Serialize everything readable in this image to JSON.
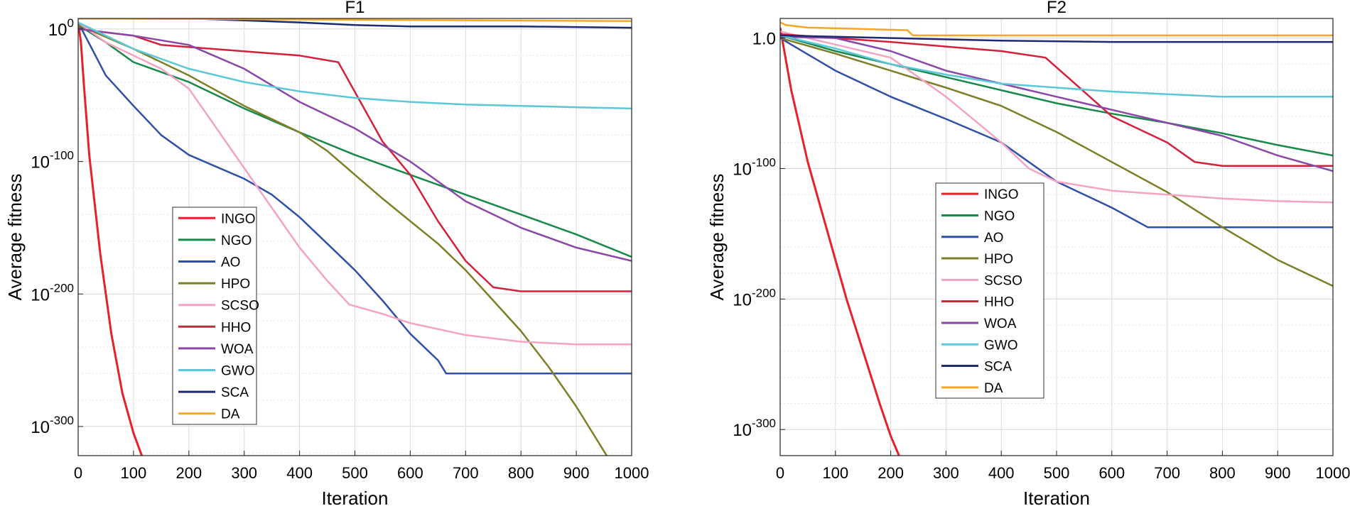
{
  "chart_data": [
    {
      "type": "line",
      "title": "F1",
      "xlabel": "Iteration",
      "ylabel": "Average fitness",
      "xlim": [
        0,
        1000
      ],
      "ylim_log10": [
        -322,
        8
      ],
      "xticks": [
        0,
        100,
        200,
        300,
        400,
        500,
        600,
        700,
        800,
        900,
        1000
      ],
      "yticks": [
        {
          "value": 0,
          "base": "10",
          "exp": "0"
        },
        {
          "value": -100,
          "base": "10",
          "exp": "-100"
        },
        {
          "value": -200,
          "base": "10",
          "exp": "-200"
        },
        {
          "value": -300,
          "base": "10",
          "exp": "-300"
        }
      ],
      "grid": true,
      "legend_position": "bottom-left",
      "series": [
        {
          "name": "INGO",
          "color": "#e8202a",
          "x": [
            0,
            5,
            10,
            20,
            40,
            60,
            80,
            100,
            115
          ],
          "log10_y": [
            5,
            -10,
            -40,
            -95,
            -170,
            -230,
            -275,
            -305,
            -322
          ]
        },
        {
          "name": "NGO",
          "color": "#17894a",
          "x": [
            0,
            50,
            100,
            200,
            300,
            400,
            500,
            600,
            700,
            800,
            900,
            1000
          ],
          "log10_y": [
            3,
            -10,
            -25,
            -40,
            -60,
            -78,
            -95,
            -110,
            -125,
            -140,
            -155,
            -172
          ]
        },
        {
          "name": "AO",
          "color": "#2f4fa8",
          "x": [
            0,
            25,
            50,
            100,
            150,
            200,
            300,
            350,
            400,
            450,
            500,
            550,
            600,
            650,
            665,
            700,
            800,
            900,
            1000
          ],
          "log10_y": [
            5,
            -15,
            -35,
            -58,
            -80,
            -95,
            -113,
            -125,
            -142,
            -162,
            -182,
            -205,
            -230,
            -250,
            -260,
            -260,
            -260,
            -260,
            -260
          ]
        },
        {
          "name": "HPO",
          "color": "#7d7f26",
          "x": [
            0,
            100,
            200,
            300,
            400,
            450,
            500,
            550,
            600,
            650,
            700,
            750,
            800,
            850,
            900,
            955
          ],
          "log10_y": [
            3,
            -15,
            -35,
            -58,
            -78,
            -92,
            -110,
            -128,
            -145,
            -162,
            -182,
            -205,
            -228,
            -255,
            -285,
            -322
          ]
        },
        {
          "name": "SCSO",
          "color": "#f4a3c4",
          "x": [
            0,
            50,
            100,
            150,
            200,
            250,
            300,
            350,
            400,
            450,
            490,
            550,
            600,
            700,
            800,
            900,
            1000
          ],
          "log10_y": [
            5,
            -10,
            -20,
            -30,
            -45,
            -75,
            -105,
            -135,
            -165,
            -190,
            -208,
            -215,
            -222,
            -231,
            -236,
            -238,
            -238
          ]
        },
        {
          "name": "HHO",
          "color": "#d4203a",
          "x": [
            0,
            100,
            150,
            400,
            470,
            510,
            550,
            600,
            650,
            700,
            750,
            800,
            900,
            1000
          ],
          "log10_y": [
            0,
            -5,
            -12,
            -20,
            -25,
            -55,
            -85,
            -110,
            -145,
            -175,
            -195,
            -198,
            -198,
            -198
          ]
        },
        {
          "name": "WOA",
          "color": "#8a47a8",
          "x": [
            0,
            100,
            200,
            300,
            400,
            500,
            600,
            700,
            800,
            900,
            1000
          ],
          "log10_y": [
            0,
            -5,
            -12,
            -30,
            -55,
            -75,
            -100,
            -130,
            -150,
            -165,
            -175
          ]
        },
        {
          "name": "GWO",
          "color": "#5bc8d8",
          "x": [
            0,
            100,
            200,
            300,
            400,
            500,
            600,
            700,
            800,
            900,
            1000
          ],
          "log10_y": [
            5,
            -15,
            -30,
            -40,
            -47,
            -52,
            -55,
            -57,
            -58,
            -59,
            -60
          ]
        },
        {
          "name": "SCA",
          "color": "#1f2a6e",
          "x": [
            0,
            200,
            400,
            500,
            600,
            800,
            1000
          ],
          "log10_y": [
            8,
            8,
            5,
            3,
            2,
            2,
            1
          ]
        },
        {
          "name": "DA",
          "color": "#f6a623",
          "x": [
            0,
            1000
          ],
          "log10_y": [
            8,
            6
          ]
        }
      ]
    },
    {
      "type": "line",
      "title": "F2",
      "xlabel": "Iteration",
      "ylabel": "Average fitness",
      "xlim": [
        0,
        1000
      ],
      "ylim_log10": [
        -320,
        15
      ],
      "xticks": [
        0,
        100,
        200,
        300,
        400,
        500,
        600,
        700,
        800,
        900,
        1000
      ],
      "yticks": [
        {
          "value": 0,
          "base": "1.0",
          "exp": ""
        },
        {
          "value": -100,
          "base": "10",
          "exp": "-100"
        },
        {
          "value": -200,
          "base": "10",
          "exp": "-200"
        },
        {
          "value": -300,
          "base": "10",
          "exp": "-300"
        }
      ],
      "grid": true,
      "legend_position": "bottom-left",
      "series": [
        {
          "name": "INGO",
          "color": "#e8202a",
          "x": [
            0,
            20,
            50,
            80,
            100,
            120,
            150,
            180,
            200,
            215
          ],
          "log10_y": [
            8,
            -40,
            -95,
            -140,
            -170,
            -200,
            -240,
            -280,
            -305,
            -320
          ]
        },
        {
          "name": "NGO",
          "color": "#17894a",
          "x": [
            0,
            100,
            200,
            300,
            400,
            500,
            600,
            700,
            800,
            900,
            1000
          ],
          "log10_y": [
            2,
            -10,
            -20,
            -30,
            -40,
            -50,
            -58,
            -65,
            -73,
            -82,
            -90
          ]
        },
        {
          "name": "AO",
          "color": "#2f4fa8",
          "x": [
            0,
            100,
            200,
            300,
            400,
            500,
            600,
            665,
            700,
            800,
            900,
            1000
          ],
          "log10_y": [
            0,
            -25,
            -45,
            -62,
            -80,
            -110,
            -130,
            -145,
            -145,
            -145,
            -145,
            -145
          ]
        },
        {
          "name": "HPO",
          "color": "#7d7f26",
          "x": [
            0,
            100,
            200,
            300,
            400,
            500,
            600,
            700,
            800,
            900,
            1000
          ],
          "log10_y": [
            0,
            -12,
            -25,
            -38,
            -52,
            -72,
            -95,
            -118,
            -145,
            -170,
            -190
          ]
        },
        {
          "name": "SCSO",
          "color": "#f4a3c4",
          "x": [
            0,
            100,
            200,
            300,
            400,
            450,
            500,
            600,
            700,
            800,
            900,
            1000
          ],
          "log10_y": [
            5,
            -5,
            -15,
            -45,
            -80,
            -100,
            -110,
            -117,
            -120,
            -123,
            -125,
            -126
          ]
        },
        {
          "name": "HHO",
          "color": "#d4203a",
          "x": [
            0,
            100,
            200,
            400,
            480,
            520,
            560,
            600,
            700,
            750,
            800,
            900,
            1000
          ],
          "log10_y": [
            3,
            0,
            -3,
            -10,
            -15,
            -30,
            -45,
            -60,
            -80,
            -95,
            -98,
            -98,
            -98
          ]
        },
        {
          "name": "WOA",
          "color": "#8a47a8",
          "x": [
            0,
            100,
            200,
            300,
            400,
            500,
            600,
            700,
            800,
            900,
            1000
          ],
          "log10_y": [
            1,
            0,
            -10,
            -25,
            -35,
            -45,
            -55,
            -65,
            -75,
            -90,
            -102
          ]
        },
        {
          "name": "GWO",
          "color": "#5bc8d8",
          "x": [
            0,
            100,
            200,
            300,
            400,
            500,
            600,
            700,
            800,
            900,
            1000
          ],
          "log10_y": [
            2,
            -8,
            -20,
            -28,
            -35,
            -38,
            -41,
            -43,
            -45,
            -45,
            -45
          ]
        },
        {
          "name": "SCA",
          "color": "#1f2a6e",
          "x": [
            0,
            200,
            400,
            600,
            800,
            1000
          ],
          "log10_y": [
            2,
            0,
            -2,
            -3,
            -3,
            -3
          ]
        },
        {
          "name": "DA",
          "color": "#f6a623",
          "x": [
            0,
            10,
            50,
            230,
            240,
            1000
          ],
          "log10_y": [
            12,
            10,
            8,
            6,
            2,
            2
          ]
        }
      ]
    }
  ]
}
